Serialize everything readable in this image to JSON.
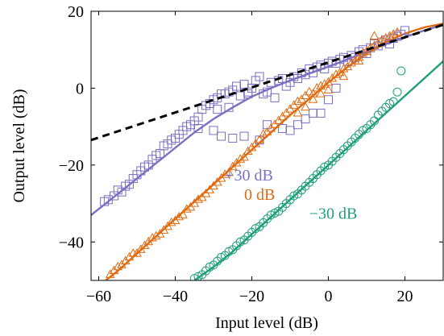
{
  "chart_data": {
    "type": "scatter",
    "title": "",
    "xlabel": "Input level (dB)",
    "ylabel": "Output level (dB)",
    "xlim": [
      -62,
      30
    ],
    "ylim": [
      -50,
      20
    ],
    "xticks": [
      -60,
      -40,
      -20,
      0,
      20
    ],
    "yticks": [
      -40,
      -20,
      0,
      20
    ],
    "xtick_labels": [
      "−60",
      "−40",
      "−20",
      "0",
      "20"
    ],
    "ytick_labels": [
      "−40",
      "−20",
      "0",
      "20"
    ],
    "grid": false,
    "colors": {
      "plus30": "#7b6fc2",
      "zero": "#e06a10",
      "minus30": "#1f9e7a",
      "reference": "#000000"
    },
    "reference_line": {
      "style": "dashed",
      "x": [
        -62,
        30
      ],
      "y": [
        -13.5,
        16.5
      ]
    },
    "series": [
      {
        "name": "+30 dB",
        "marker": "square",
        "color": "#7b6fc2",
        "curve": {
          "x": [
            -62,
            -55,
            -50,
            -45,
            -40,
            -35,
            -30,
            -25,
            -20,
            -15,
            -10,
            -5,
            0,
            5,
            10,
            15,
            20,
            25,
            30
          ],
          "y": [
            -33,
            -27.5,
            -23.5,
            -19.5,
            -15.5,
            -11.5,
            -8,
            -5,
            -2.2,
            0,
            2,
            3.8,
            5.6,
            7.5,
            9.5,
            11.5,
            13.3,
            15,
            16.5
          ]
        },
        "points": {
          "x": [
            -58.5,
            -57.5,
            -56,
            -55,
            -54,
            -53,
            -52,
            -51,
            -50,
            -49,
            -48,
            -47,
            -46,
            -45,
            -44,
            -43,
            -42,
            -41,
            -40,
            -39,
            -38,
            -37,
            -36,
            -35,
            -34,
            -33,
            -32,
            -31,
            -30,
            -29,
            -28,
            -27,
            -26,
            -25,
            -24,
            -23,
            -22,
            -21,
            -20,
            -19,
            -18,
            -17,
            -16,
            -15,
            -14,
            -13,
            -12,
            -11,
            -10,
            -9,
            -8,
            -7,
            -6,
            -5,
            -4,
            -3,
            -2,
            -1,
            0,
            1,
            2,
            3,
            4,
            5,
            6,
            7,
            8,
            9,
            10,
            11,
            12,
            13,
            14,
            15,
            16,
            17,
            18,
            19,
            20,
            -34,
            -30,
            -28,
            -25,
            -22,
            -18,
            -26,
            -29,
            -21,
            -16,
            -12,
            -10,
            -8,
            -6,
            -4,
            -2,
            0,
            2
          ],
          "y": [
            -29.5,
            -29,
            -28,
            -26.5,
            -27,
            -25.5,
            -25,
            -23.5,
            -22.5,
            -21.5,
            -20.5,
            -20,
            -18.5,
            -17.5,
            -17,
            -15,
            -14.5,
            -13.5,
            -13,
            -12,
            -11,
            -10,
            -9.5,
            -8.5,
            -7.5,
            -5.5,
            -4.5,
            -4,
            -3,
            -2.5,
            -1.5,
            -1.5,
            -1,
            -0.5,
            0.5,
            -2,
            1,
            -1,
            0,
            2,
            3,
            -1.5,
            -1,
            1.5,
            -2.5,
            2,
            2.5,
            0.5,
            1.5,
            3,
            2.5,
            4,
            3.5,
            5,
            4,
            5.5,
            6,
            5,
            6.5,
            7,
            6.5,
            7.5,
            8,
            7,
            8.5,
            8,
            9.5,
            10,
            9,
            10.5,
            11.5,
            11,
            12,
            12.5,
            11.5,
            13,
            13.5,
            14,
            15,
            -10.5,
            -11,
            -12.5,
            -13,
            -12.5,
            -13.5,
            -5,
            -5.5,
            -1.5,
            -9.5,
            -10.5,
            -11,
            -9.5,
            -8,
            -6.5,
            -6.5,
            -3,
            0
          ]
        },
        "label": "+30 dB"
      },
      {
        "name": "0 dB",
        "marker": "triangle",
        "color": "#e06a10",
        "curve": {
          "x": [
            -62,
            -55,
            -50,
            -45,
            -40,
            -35,
            -30,
            -25,
            -20,
            -15,
            -10,
            -5,
            0,
            5,
            10,
            15,
            20,
            25,
            30
          ],
          "y": [
            -53,
            -47.5,
            -43,
            -38.5,
            -34,
            -29.5,
            -25,
            -20.5,
            -16,
            -11.5,
            -7,
            -2.8,
            1.5,
            5.5,
            9,
            12,
            14.2,
            15.8,
            16.8
          ]
        },
        "points": {
          "x": [
            -57,
            -56,
            -55,
            -54,
            -53,
            -52,
            -51,
            -50,
            -49,
            -48,
            -47,
            -46,
            -45,
            -44,
            -43,
            -42,
            -41,
            -40,
            -39,
            -38,
            -37,
            -36,
            -35,
            -34,
            -33,
            -32,
            -31,
            -30,
            -29,
            -28,
            -27,
            -26,
            -25,
            -24,
            -23,
            -22,
            -21,
            -20,
            -19,
            -18,
            -17,
            -16,
            -15,
            -14,
            -13,
            -12,
            -11,
            -10,
            -9,
            -8,
            -7,
            -6,
            -5,
            -4,
            -3,
            -2,
            -1,
            0,
            1,
            2,
            3,
            4,
            5,
            6,
            7,
            8,
            9,
            10,
            11,
            12,
            13,
            14,
            15,
            16,
            17,
            18,
            -8,
            -6,
            -4,
            -2,
            0,
            4,
            8,
            12
          ],
          "y": [
            -48.5,
            -47.5,
            -46.5,
            -46,
            -45,
            -44,
            -43,
            -43,
            -42,
            -41,
            -40,
            -39,
            -38.5,
            -38,
            -37,
            -36,
            -35,
            -34.5,
            -33.5,
            -33,
            -31.5,
            -31,
            -30,
            -29,
            -28.5,
            -27.5,
            -26.5,
            -25.5,
            -24.5,
            -23.5,
            -22.5,
            -22,
            -20.5,
            -19.5,
            -18.5,
            -18,
            -16.5,
            -15.5,
            -14.5,
            -13.5,
            -12,
            -11.5,
            -10.5,
            -9.5,
            -8.5,
            -7.5,
            -6.5,
            -5.5,
            -4.5,
            -3.5,
            -3,
            -2,
            -1,
            -1.5,
            0,
            0.5,
            1,
            1.5,
            2.5,
            3.5,
            4,
            5,
            5.5,
            6.5,
            7,
            8,
            9,
            9.5,
            10.5,
            11,
            11.5,
            12.5,
            13,
            13.5,
            14,
            14.5,
            -6.5,
            -5,
            -3,
            -1.5,
            -0.5,
            3,
            7,
            13.5
          ]
        },
        "label": "0 dB"
      },
      {
        "name": "−30 dB",
        "marker": "circle",
        "color": "#1f9e7a",
        "curve": {
          "x": [
            -35,
            -30,
            -25,
            -20,
            -15,
            -10,
            -5,
            0,
            5,
            10,
            15,
            20,
            25,
            30
          ],
          "y": [
            -50,
            -46.5,
            -42.5,
            -38,
            -33.5,
            -29,
            -24.5,
            -20,
            -15.5,
            -11,
            -6.5,
            -2,
            2.5,
            7
          ]
        },
        "points": {
          "x": [
            -35,
            -34,
            -33,
            -32,
            -31,
            -30,
            -29,
            -28,
            -27,
            -26,
            -25,
            -24,
            -23,
            -22,
            -21,
            -20,
            -19,
            -18,
            -17,
            -16,
            -15,
            -14,
            -13,
            -12,
            -11,
            -10,
            -9,
            -8,
            -7,
            -6,
            -5,
            -4,
            -3,
            -2,
            -1,
            0,
            1,
            2,
            3,
            4,
            5,
            6,
            7,
            8,
            9,
            10,
            11,
            12,
            13,
            14,
            15,
            16,
            17,
            18,
            19
          ],
          "y": [
            -49.5,
            -49,
            -48.5,
            -47.5,
            -46.5,
            -46,
            -45,
            -44,
            -43.5,
            -42.5,
            -42,
            -41,
            -40,
            -39.5,
            -38.5,
            -37.5,
            -36.5,
            -36,
            -35,
            -34,
            -33,
            -32.5,
            -32,
            -31,
            -30,
            -29,
            -28,
            -27.5,
            -26.5,
            -25.5,
            -24.5,
            -23.5,
            -22.5,
            -21.5,
            -20.5,
            -20,
            -19,
            -18,
            -17,
            -16,
            -15,
            -14,
            -13,
            -12,
            -11,
            -10.5,
            -9.5,
            -8.5,
            -7,
            -6,
            -5,
            -4,
            -3.5,
            -1,
            4.5
          ]
        },
        "label": "−30 dB"
      }
    ],
    "annotations": [
      {
        "text": "+30 dB",
        "x": -27,
        "y": -24,
        "series": "+30 dB"
      },
      {
        "text": "0 dB",
        "x": -22,
        "y": -29,
        "series": "0 dB"
      },
      {
        "text": "−30 dB",
        "x": -5,
        "y": -34,
        "series": "−30 dB"
      }
    ]
  }
}
